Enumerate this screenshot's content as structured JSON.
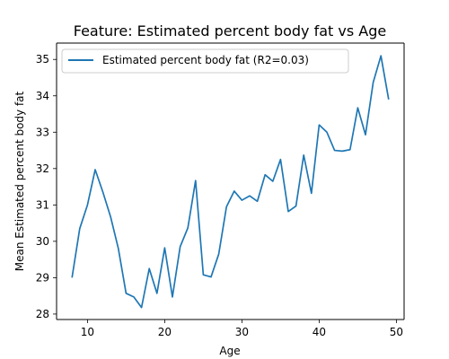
{
  "chart_data": {
    "type": "line",
    "title": "Feature: Estimated percent body fat vs Age",
    "xlabel": "Age",
    "ylabel": "Mean Estimated percent body fat",
    "xlim": [
      6.0,
      51.0
    ],
    "ylim": [
      27.85,
      35.45
    ],
    "xticks": [
      10,
      20,
      30,
      40,
      50
    ],
    "yticks": [
      28,
      29,
      30,
      31,
      32,
      33,
      34,
      35
    ],
    "grid": false,
    "legend_position": "top-left",
    "series": [
      {
        "name": "Estimated percent body fat (R2=0.03)",
        "color": "#1f77b4",
        "x": [
          8,
          9,
          10,
          11,
          12,
          13,
          14,
          15,
          16,
          17,
          18,
          19,
          20,
          21,
          22,
          23,
          24,
          25,
          26,
          27,
          28,
          29,
          30,
          31,
          32,
          33,
          34,
          35,
          36,
          37,
          38,
          39,
          40,
          41,
          42,
          43,
          44,
          45,
          46,
          47,
          48,
          49
        ],
        "y": [
          29.0,
          30.35,
          31.0,
          31.97,
          31.35,
          30.67,
          29.8,
          28.57,
          28.47,
          28.18,
          29.25,
          28.57,
          29.82,
          28.47,
          29.85,
          30.37,
          31.67,
          29.08,
          29.02,
          29.65,
          30.95,
          31.38,
          31.13,
          31.25,
          31.1,
          31.83,
          31.65,
          32.25,
          30.82,
          30.97,
          32.37,
          31.32,
          33.2,
          33.0,
          32.5,
          32.48,
          32.52,
          33.67,
          32.93,
          34.37,
          35.1,
          33.9
        ]
      }
    ]
  }
}
